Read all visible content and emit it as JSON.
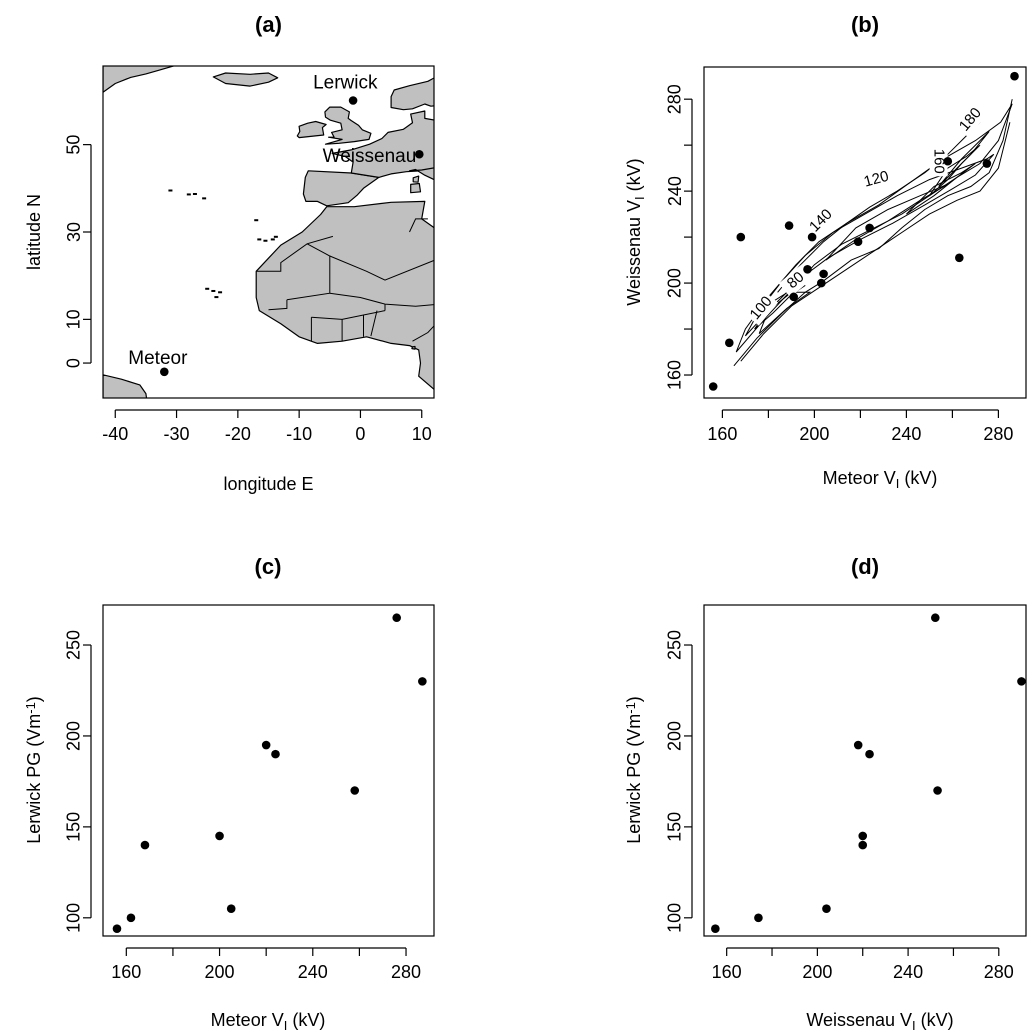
{
  "figure": {
    "panels": [
      {
        "id": "a",
        "title": "(a)"
      },
      {
        "id": "b",
        "title": "(b)"
      },
      {
        "id": "c",
        "title": "(c)"
      },
      {
        "id": "d",
        "title": "(d)"
      }
    ]
  },
  "chart_data": [
    {
      "panel": "(a)",
      "type": "scatter",
      "subtype": "map",
      "title": "(a)",
      "xlabel": "longitude E",
      "ylabel": "latitude N",
      "xlim": [
        -42,
        12
      ],
      "ylim": [
        -8,
        68
      ],
      "xticks": [
        -40,
        -30,
        -20,
        -10,
        0,
        10
      ],
      "yticks": [
        0,
        10,
        30,
        50
      ],
      "land_color": "#c0c0c0",
      "stations": [
        {
          "name": "Lerwick",
          "lon": -1.2,
          "lat": 60.1
        },
        {
          "name": "Weissenau",
          "lon": 9.6,
          "lat": 47.8
        },
        {
          "name": "Meteor",
          "lon": -32.0,
          "lat": -2.0
        }
      ]
    },
    {
      "panel": "(b)",
      "type": "scatter",
      "subtype": "scatter with density contours",
      "title": "(b)",
      "xlabel": {
        "main": "Meteor V",
        "sub": "I",
        "unit": " (kV)"
      },
      "ylabel": {
        "main": "Weissenau V",
        "sub": "I",
        "unit": " (kV)"
      },
      "xlim": [
        152,
        292
      ],
      "ylim": [
        150,
        294
      ],
      "xticks": [
        160,
        200,
        240,
        280
      ],
      "minor_xticks": [
        180,
        220,
        260
      ],
      "yticks": [
        160,
        200,
        240,
        280
      ],
      "minor_yticks": [
        180,
        220,
        260
      ],
      "contour_labels": [
        "100",
        "80",
        "140",
        "120",
        "160",
        "180"
      ],
      "points": [
        {
          "x": 156,
          "y": 155
        },
        {
          "x": 163,
          "y": 174
        },
        {
          "x": 168,
          "y": 220
        },
        {
          "x": 189,
          "y": 225
        },
        {
          "x": 191,
          "y": 194
        },
        {
          "x": 197,
          "y": 206
        },
        {
          "x": 199,
          "y": 220
        },
        {
          "x": 203,
          "y": 200
        },
        {
          "x": 204,
          "y": 204
        },
        {
          "x": 219,
          "y": 218
        },
        {
          "x": 224,
          "y": 224
        },
        {
          "x": 258,
          "y": 253
        },
        {
          "x": 263,
          "y": 211
        },
        {
          "x": 275,
          "y": 252
        },
        {
          "x": 287,
          "y": 290
        }
      ]
    },
    {
      "panel": "(c)",
      "type": "scatter",
      "title": "(c)",
      "xlabel": {
        "main": "Meteor V",
        "sub": "I",
        "unit": " (kV)"
      },
      "ylabel": {
        "main": "Lerwick PG (Vm",
        "sup": "-1",
        "unit": ")"
      },
      "xlim": [
        150,
        292
      ],
      "ylim": [
        90,
        272
      ],
      "xticks": [
        160,
        200,
        240,
        280
      ],
      "minor_xticks": [
        180,
        220,
        260
      ],
      "yticks": [
        100,
        150,
        200,
        250
      ],
      "points": [
        {
          "x": 156,
          "y": 94
        },
        {
          "x": 162,
          "y": 100
        },
        {
          "x": 168,
          "y": 140
        },
        {
          "x": 200,
          "y": 145
        },
        {
          "x": 205,
          "y": 105
        },
        {
          "x": 220,
          "y": 195
        },
        {
          "x": 224,
          "y": 190
        },
        {
          "x": 258,
          "y": 170
        },
        {
          "x": 276,
          "y": 265
        },
        {
          "x": 287,
          "y": 230
        }
      ]
    },
    {
      "panel": "(d)",
      "type": "scatter",
      "title": "(d)",
      "xlabel": {
        "main": "Weissenau V",
        "sub": "I",
        "unit": " (kV)"
      },
      "ylabel": {
        "main": "Lerwick PG (Vm",
        "sup": "-1",
        "unit": ")"
      },
      "xlim": [
        150,
        292
      ],
      "ylim": [
        90,
        272
      ],
      "xticks": [
        160,
        200,
        240,
        280
      ],
      "minor_xticks": [
        180,
        220,
        260
      ],
      "yticks": [
        100,
        150,
        200,
        250
      ],
      "points": [
        {
          "x": 155,
          "y": 94
        },
        {
          "x": 174,
          "y": 100
        },
        {
          "x": 204,
          "y": 105
        },
        {
          "x": 218,
          "y": 195
        },
        {
          "x": 220,
          "y": 145
        },
        {
          "x": 220,
          "y": 140
        },
        {
          "x": 223,
          "y": 190
        },
        {
          "x": 252,
          "y": 265
        },
        {
          "x": 253,
          "y": 170
        },
        {
          "x": 290,
          "y": 230
        }
      ]
    }
  ]
}
